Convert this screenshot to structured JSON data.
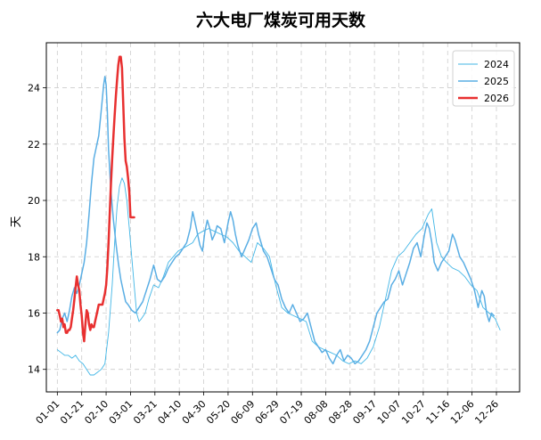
{
  "chart_data": {
    "type": "line",
    "title": "六大电厂煤炭可用天数",
    "xlabel": "",
    "ylabel": "天",
    "x_ticks": [
      "01-01",
      "01-21",
      "02-10",
      "03-01",
      "03-21",
      "04-10",
      "04-30",
      "05-20",
      "06-09",
      "06-29",
      "07-19",
      "08-08",
      "08-28",
      "09-17",
      "10-07",
      "10-27",
      "11-16",
      "12-06",
      "12-26"
    ],
    "ylim": [
      13.2,
      25.6
    ],
    "y_ticks": [
      14,
      16,
      18,
      20,
      22,
      24
    ],
    "grid": true,
    "legend_position": "top-right",
    "series": [
      {
        "name": "2024",
        "color": "#41b6e6",
        "width": 0.9,
        "points": [
          [
            1,
            14.7
          ],
          [
            4,
            14.6
          ],
          [
            7,
            14.5
          ],
          [
            10,
            14.5
          ],
          [
            13,
            14.4
          ],
          [
            16,
            14.5
          ],
          [
            19,
            14.3
          ],
          [
            22,
            14.2
          ],
          [
            25,
            14.0
          ],
          [
            28,
            13.8
          ],
          [
            31,
            13.8
          ],
          [
            34,
            13.9
          ],
          [
            37,
            14.0
          ],
          [
            40,
            14.2
          ],
          [
            43,
            15.3
          ],
          [
            46,
            17.0
          ],
          [
            48,
            18.5
          ],
          [
            50,
            19.8
          ],
          [
            52,
            20.5
          ],
          [
            54,
            20.8
          ],
          [
            56,
            20.6
          ],
          [
            58,
            20.0
          ],
          [
            60,
            19.0
          ],
          [
            62,
            18.0
          ],
          [
            64,
            17.0
          ],
          [
            66,
            16.0
          ],
          [
            68,
            15.7
          ],
          [
            70,
            15.8
          ],
          [
            73,
            16.0
          ],
          [
            76,
            16.5
          ],
          [
            80,
            17.0
          ],
          [
            84,
            16.9
          ],
          [
            88,
            17.3
          ],
          [
            92,
            17.8
          ],
          [
            96,
            18.0
          ],
          [
            100,
            18.2
          ],
          [
            104,
            18.3
          ],
          [
            108,
            18.4
          ],
          [
            112,
            18.5
          ],
          [
            116,
            18.8
          ],
          [
            120,
            18.9
          ],
          [
            125,
            19.0
          ],
          [
            130,
            18.9
          ],
          [
            135,
            18.8
          ],
          [
            140,
            18.7
          ],
          [
            145,
            18.5
          ],
          [
            150,
            18.2
          ],
          [
            155,
            18.0
          ],
          [
            160,
            17.8
          ],
          [
            165,
            18.5
          ],
          [
            170,
            18.3
          ],
          [
            175,
            18.0
          ],
          [
            180,
            17.0
          ],
          [
            185,
            16.2
          ],
          [
            190,
            16.0
          ],
          [
            195,
            15.9
          ],
          [
            200,
            15.8
          ],
          [
            205,
            15.7
          ],
          [
            210,
            15.0
          ],
          [
            215,
            14.8
          ],
          [
            220,
            14.7
          ],
          [
            225,
            14.6
          ],
          [
            230,
            14.5
          ],
          [
            235,
            14.3
          ],
          [
            240,
            14.2
          ],
          [
            245,
            14.3
          ],
          [
            250,
            14.2
          ],
          [
            255,
            14.4
          ],
          [
            260,
            14.8
          ],
          [
            265,
            15.5
          ],
          [
            270,
            16.5
          ],
          [
            275,
            17.5
          ],
          [
            280,
            18.0
          ],
          [
            285,
            18.2
          ],
          [
            290,
            18.5
          ],
          [
            295,
            18.8
          ],
          [
            300,
            19.0
          ],
          [
            305,
            19.5
          ],
          [
            308,
            19.7
          ],
          [
            312,
            18.5
          ],
          [
            316,
            18.0
          ],
          [
            320,
            17.8
          ],
          [
            325,
            17.6
          ],
          [
            330,
            17.5
          ],
          [
            335,
            17.3
          ],
          [
            340,
            17.0
          ],
          [
            345,
            16.8
          ],
          [
            350,
            16.2
          ],
          [
            355,
            16.0
          ],
          [
            360,
            15.8
          ],
          [
            364,
            15.4
          ]
        ]
      },
      {
        "name": "2025",
        "color": "#5aaee4",
        "width": 1.5,
        "points": [
          [
            1,
            15.3
          ],
          [
            3,
            15.4
          ],
          [
            5,
            15.8
          ],
          [
            7,
            16.0
          ],
          [
            9,
            15.7
          ],
          [
            11,
            16.1
          ],
          [
            13,
            16.6
          ],
          [
            15,
            16.9
          ],
          [
            17,
            16.7
          ],
          [
            19,
            17.0
          ],
          [
            21,
            17.4
          ],
          [
            23,
            17.8
          ],
          [
            25,
            18.5
          ],
          [
            27,
            19.5
          ],
          [
            29,
            20.6
          ],
          [
            31,
            21.5
          ],
          [
            33,
            21.9
          ],
          [
            35,
            22.3
          ],
          [
            37,
            23.2
          ],
          [
            39,
            24.1
          ],
          [
            40,
            24.4
          ],
          [
            41,
            24.1
          ],
          [
            42,
            23.2
          ],
          [
            43,
            21.8
          ],
          [
            45,
            20.3
          ],
          [
            47,
            19.3
          ],
          [
            49,
            18.5
          ],
          [
            51,
            17.8
          ],
          [
            53,
            17.2
          ],
          [
            55,
            16.8
          ],
          [
            57,
            16.4
          ],
          [
            59,
            16.3
          ],
          [
            62,
            16.1
          ],
          [
            65,
            16.0
          ],
          [
            68,
            16.2
          ],
          [
            71,
            16.4
          ],
          [
            74,
            16.8
          ],
          [
            77,
            17.2
          ],
          [
            80,
            17.7
          ],
          [
            83,
            17.2
          ],
          [
            86,
            17.1
          ],
          [
            89,
            17.3
          ],
          [
            92,
            17.6
          ],
          [
            95,
            17.8
          ],
          [
            98,
            18.0
          ],
          [
            101,
            18.1
          ],
          [
            104,
            18.3
          ],
          [
            107,
            18.5
          ],
          [
            110,
            19.0
          ],
          [
            112,
            19.6
          ],
          [
            114,
            19.2
          ],
          [
            116,
            18.8
          ],
          [
            118,
            18.4
          ],
          [
            120,
            18.2
          ],
          [
            122,
            18.9
          ],
          [
            124,
            19.3
          ],
          [
            126,
            19.0
          ],
          [
            128,
            18.6
          ],
          [
            130,
            18.8
          ],
          [
            132,
            19.1
          ],
          [
            135,
            19.0
          ],
          [
            138,
            18.5
          ],
          [
            141,
            19.2
          ],
          [
            143,
            19.6
          ],
          [
            145,
            19.3
          ],
          [
            147,
            18.8
          ],
          [
            149,
            18.4
          ],
          [
            152,
            18.0
          ],
          [
            155,
            18.3
          ],
          [
            158,
            18.6
          ],
          [
            161,
            19.0
          ],
          [
            164,
            19.2
          ],
          [
            166,
            18.8
          ],
          [
            168,
            18.5
          ],
          [
            170,
            18.2
          ],
          [
            173,
            18.0
          ],
          [
            176,
            17.6
          ],
          [
            179,
            17.2
          ],
          [
            182,
            17.0
          ],
          [
            185,
            16.5
          ],
          [
            188,
            16.2
          ],
          [
            191,
            16.0
          ],
          [
            194,
            16.3
          ],
          [
            197,
            16.0
          ],
          [
            200,
            15.7
          ],
          [
            203,
            15.8
          ],
          [
            206,
            16.0
          ],
          [
            209,
            15.5
          ],
          [
            212,
            15.0
          ],
          [
            215,
            14.8
          ],
          [
            218,
            14.6
          ],
          [
            221,
            14.7
          ],
          [
            224,
            14.4
          ],
          [
            227,
            14.2
          ],
          [
            230,
            14.5
          ],
          [
            233,
            14.7
          ],
          [
            236,
            14.3
          ],
          [
            239,
            14.5
          ],
          [
            242,
            14.4
          ],
          [
            245,
            14.2
          ],
          [
            248,
            14.3
          ],
          [
            251,
            14.5
          ],
          [
            254,
            14.7
          ],
          [
            257,
            15.0
          ],
          [
            260,
            15.5
          ],
          [
            263,
            16.0
          ],
          [
            266,
            16.2
          ],
          [
            269,
            16.4
          ],
          [
            272,
            16.5
          ],
          [
            275,
            17.0
          ],
          [
            278,
            17.2
          ],
          [
            281,
            17.5
          ],
          [
            284,
            17.0
          ],
          [
            287,
            17.4
          ],
          [
            290,
            17.8
          ],
          [
            293,
            18.3
          ],
          [
            296,
            18.5
          ],
          [
            299,
            18.0
          ],
          [
            302,
            18.8
          ],
          [
            304,
            19.2
          ],
          [
            306,
            19.0
          ],
          [
            308,
            18.5
          ],
          [
            310,
            17.8
          ],
          [
            313,
            17.5
          ],
          [
            316,
            17.8
          ],
          [
            319,
            18.0
          ],
          [
            322,
            18.2
          ],
          [
            325,
            18.8
          ],
          [
            327,
            18.6
          ],
          [
            329,
            18.3
          ],
          [
            331,
            18.0
          ],
          [
            334,
            17.8
          ],
          [
            337,
            17.5
          ],
          [
            340,
            17.2
          ],
          [
            343,
            16.8
          ],
          [
            346,
            16.2
          ],
          [
            349,
            16.8
          ],
          [
            351,
            16.6
          ],
          [
            353,
            16.0
          ],
          [
            355,
            15.7
          ],
          [
            357,
            16.0
          ],
          [
            359,
            15.9
          ]
        ]
      },
      {
        "name": "2026",
        "color": "#e83030",
        "width": 2.5,
        "points": [
          [
            1,
            16.1
          ],
          [
            2,
            16.1
          ],
          [
            3,
            15.9
          ],
          [
            4,
            15.7
          ],
          [
            5,
            15.8
          ],
          [
            6,
            15.5
          ],
          [
            7,
            15.6
          ],
          [
            8,
            15.3
          ],
          [
            9,
            15.3
          ],
          [
            10,
            15.4
          ],
          [
            11,
            15.4
          ],
          [
            12,
            15.5
          ],
          [
            13,
            15.8
          ],
          [
            14,
            16.1
          ],
          [
            15,
            16.5
          ],
          [
            16,
            16.9
          ],
          [
            17,
            17.3
          ],
          [
            18,
            17.0
          ],
          [
            19,
            16.8
          ],
          [
            20,
            16.3
          ],
          [
            21,
            15.9
          ],
          [
            22,
            15.3
          ],
          [
            23,
            15.0
          ],
          [
            24,
            15.6
          ],
          [
            25,
            16.1
          ],
          [
            26,
            16.0
          ],
          [
            27,
            15.6
          ],
          [
            28,
            15.4
          ],
          [
            29,
            15.6
          ],
          [
            30,
            15.5
          ],
          [
            31,
            15.5
          ],
          [
            32,
            15.7
          ],
          [
            33,
            15.9
          ],
          [
            34,
            16.1
          ],
          [
            35,
            16.3
          ],
          [
            36,
            16.3
          ],
          [
            37,
            16.3
          ],
          [
            38,
            16.3
          ],
          [
            39,
            16.5
          ],
          [
            40,
            16.7
          ],
          [
            41,
            17.0
          ],
          [
            42,
            17.6
          ],
          [
            43,
            18.5
          ],
          [
            44,
            19.6
          ],
          [
            45,
            20.6
          ],
          [
            46,
            21.5
          ],
          [
            47,
            22.3
          ],
          [
            48,
            23.0
          ],
          [
            49,
            23.7
          ],
          [
            50,
            24.3
          ],
          [
            51,
            24.8
          ],
          [
            52,
            25.1
          ],
          [
            53,
            25.1
          ],
          [
            54,
            24.7
          ],
          [
            55,
            23.5
          ],
          [
            56,
            22.2
          ],
          [
            57,
            21.4
          ],
          [
            58,
            21.2
          ],
          [
            59,
            20.8
          ],
          [
            60,
            20.3
          ],
          [
            61,
            19.4
          ],
          [
            62,
            19.4
          ],
          [
            63,
            19.4
          ],
          [
            64,
            19.4
          ]
        ]
      }
    ]
  }
}
